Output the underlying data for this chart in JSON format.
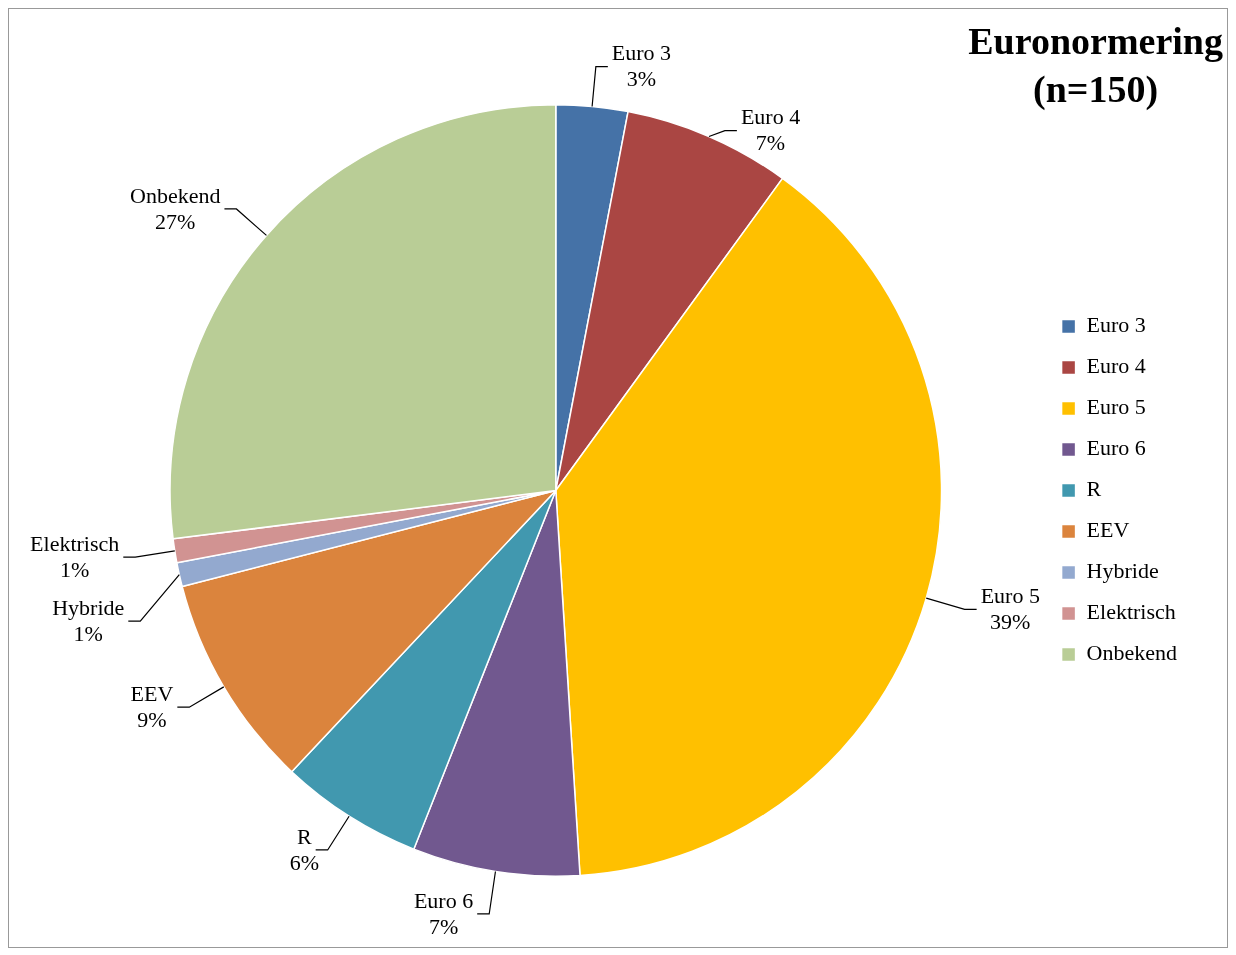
{
  "chart_data": {
    "type": "pie",
    "title": "Euronormering\n(n=150)",
    "categories": [
      "Euro 3",
      "Euro 4",
      "Euro 5",
      "Euro 6",
      "R",
      "EEV",
      "Hybride",
      "Elektrisch",
      "Onbekend"
    ],
    "values": [
      3,
      7,
      39,
      7,
      6,
      9,
      1,
      1,
      27
    ],
    "colors": [
      "#4572a7",
      "#aa4643",
      "#ffc000",
      "#71588f",
      "#4198af",
      "#db843d",
      "#93a9cf",
      "#d19392",
      "#b9cd96"
    ],
    "value_labels": [
      "3%",
      "7%",
      "39%",
      "7%",
      "6%",
      "9%",
      "1%",
      "1%",
      "27%"
    ],
    "legend": "right"
  }
}
